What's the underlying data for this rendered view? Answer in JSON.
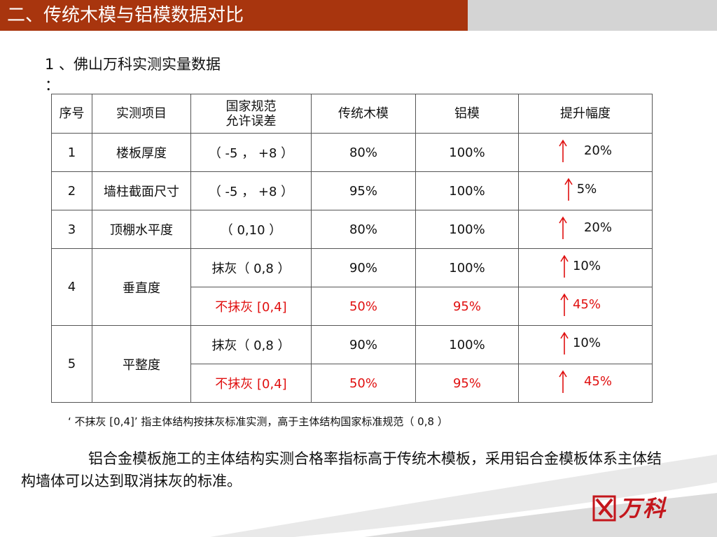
{
  "header": {
    "title": "二、传统木模与铝模数据对比"
  },
  "subtitle": {
    "text": "1 、佛山万科实测实量数据",
    "colon": "："
  },
  "table": {
    "headers": {
      "index": "序号",
      "item": "实测项目",
      "tolerance_line1": "国家规范",
      "tolerance_line2": "允许误差",
      "wood": "传统木模",
      "aluminum": "铝模",
      "gain": "提升幅度"
    },
    "rows": [
      {
        "index": "1",
        "item": "楼板厚度",
        "tolerance": "（ -5 ， +8 ）",
        "wood": "80%",
        "aluminum": "100%",
        "gain": "20%"
      },
      {
        "index": "2",
        "item": "墙柱截面尺寸",
        "tolerance": "（ -5 ， +8 ）",
        "wood": "95%",
        "aluminum": "100%",
        "gain": "5%"
      },
      {
        "index": "3",
        "item": "顶棚水平度",
        "tolerance": "（ 0,10 ）",
        "wood": "80%",
        "aluminum": "100%",
        "gain": "20%"
      },
      {
        "index": "4",
        "item": "垂直度",
        "sub": [
          {
            "tolerance": "抹灰（ 0,8 ）",
            "wood": "90%",
            "aluminum": "100%",
            "gain": "10%"
          },
          {
            "tolerance": "不抹灰 [0,4]",
            "wood": "50%",
            "aluminum": "95%",
            "gain": "45%"
          }
        ]
      },
      {
        "index": "5",
        "item": "平整度",
        "sub": [
          {
            "tolerance": "抹灰（ 0,8 ）",
            "wood": "90%",
            "aluminum": "100%",
            "gain": "10%"
          },
          {
            "tolerance": "不抹灰 [0,4]",
            "wood": "50%",
            "aluminum": "95%",
            "gain": "45%"
          }
        ]
      }
    ]
  },
  "note": {
    "text": "‘ 不抹灰 [0,4]’ 指主体结构按抹灰标准实测，高于主体结构国家标准规范（ 0,8 ）"
  },
  "paragraph": {
    "text": "铝合金模板施工的主体结构实测合格率指标高于传统木模板，采用铝合金模板体系主体结构墙体可以达到取消抹灰的标准。"
  },
  "logo": {
    "text": "万科"
  },
  "colors": {
    "header_bg": "#a8350e",
    "header_gray": "#d4d4d4",
    "highlight_red": "#e01010",
    "brand_red": "#c4161c"
  },
  "icons": {
    "gain_indicator": "up-arrow-icon"
  }
}
